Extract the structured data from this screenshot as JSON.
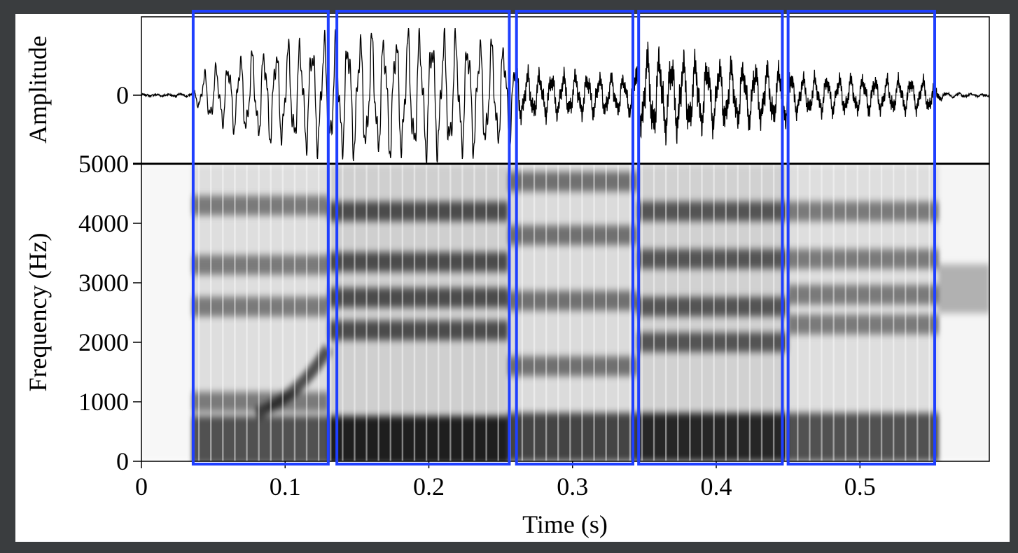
{
  "colors": {
    "frame": "#3a3d3f",
    "canvas": "#ffffff",
    "axis": "#000000",
    "waveform": "#000000",
    "highlight": "#1f3fff",
    "spectrogram_dark": "#000000",
    "spectrogram_light": "#ffffff"
  },
  "chart_data": {
    "type": "spectrogram",
    "xlabel": "Time (s)",
    "xlim": [
      0,
      0.59
    ],
    "xticks": [
      {
        "value": 0,
        "label": "0"
      },
      {
        "value": 0.1,
        "label": "0.1"
      },
      {
        "value": 0.2,
        "label": "0.2"
      },
      {
        "value": 0.3,
        "label": "0.3"
      },
      {
        "value": 0.4,
        "label": "0.4"
      },
      {
        "value": 0.5,
        "label": "0.5"
      }
    ],
    "waveform": {
      "ylabel": "Amplitude",
      "yticks": [
        {
          "value": 0,
          "label": "0"
        }
      ],
      "zero_line": true,
      "envelope": [
        {
          "t": 0.0,
          "a": 0.01
        },
        {
          "t": 0.035,
          "a": 0.02
        },
        {
          "t": 0.045,
          "a": 0.4
        },
        {
          "t": 0.08,
          "a": 0.7
        },
        {
          "t": 0.125,
          "a": 0.9
        },
        {
          "t": 0.14,
          "a": 0.93
        },
        {
          "t": 0.2,
          "a": 1.0
        },
        {
          "t": 0.255,
          "a": 0.82
        },
        {
          "t": 0.265,
          "a": 0.42
        },
        {
          "t": 0.34,
          "a": 0.34
        },
        {
          "t": 0.35,
          "a": 0.78
        },
        {
          "t": 0.4,
          "a": 0.6
        },
        {
          "t": 0.45,
          "a": 0.5
        },
        {
          "t": 0.455,
          "a": 0.36
        },
        {
          "t": 0.55,
          "a": 0.3
        },
        {
          "t": 0.558,
          "a": 0.04
        },
        {
          "t": 0.59,
          "a": 0.01
        }
      ]
    },
    "spectrogram": {
      "ylabel": "Frequency (Hz)",
      "ylim": [
        0,
        5000
      ],
      "yticks": [
        {
          "value": 0,
          "label": "0"
        },
        {
          "value": 1000,
          "label": "1000"
        },
        {
          "value": 2000,
          "label": "2000"
        },
        {
          "value": 3000,
          "label": "3000"
        },
        {
          "value": 4000,
          "label": "4000"
        },
        {
          "value": 5000,
          "label": "5000"
        }
      ],
      "segments": [
        {
          "t0": 0.0,
          "t1": 0.035,
          "formants": [],
          "intensity": 0.15
        },
        {
          "t0": 0.035,
          "t1": 0.13,
          "formants": [
            350,
            1000,
            2600,
            3300,
            4300
          ],
          "intensity": 0.6
        },
        {
          "t0": 0.13,
          "t1": 0.255,
          "formants": [
            350,
            2200,
            2750,
            3350,
            4200
          ],
          "intensity": 0.85
        },
        {
          "t0": 0.255,
          "t1": 0.345,
          "formants": [
            400,
            1600,
            2700,
            3800,
            4700
          ],
          "intensity": 0.65
        },
        {
          "t0": 0.345,
          "t1": 0.45,
          "formants": [
            400,
            2000,
            2600,
            3400,
            4200
          ],
          "intensity": 0.8
        },
        {
          "t0": 0.45,
          "t1": 0.555,
          "formants": [
            400,
            2300,
            2800,
            3400,
            4200
          ],
          "intensity": 0.6
        },
        {
          "t0": 0.555,
          "t1": 0.59,
          "formants": [
            2900
          ],
          "intensity": 0.2
        }
      ]
    },
    "highlight_boxes": [
      {
        "t0": 0.036,
        "t1": 0.13
      },
      {
        "t0": 0.136,
        "t1": 0.256
      },
      {
        "t0": 0.261,
        "t1": 0.342
      },
      {
        "t0": 0.346,
        "t1": 0.446
      },
      {
        "t0": 0.45,
        "t1": 0.552
      }
    ]
  }
}
